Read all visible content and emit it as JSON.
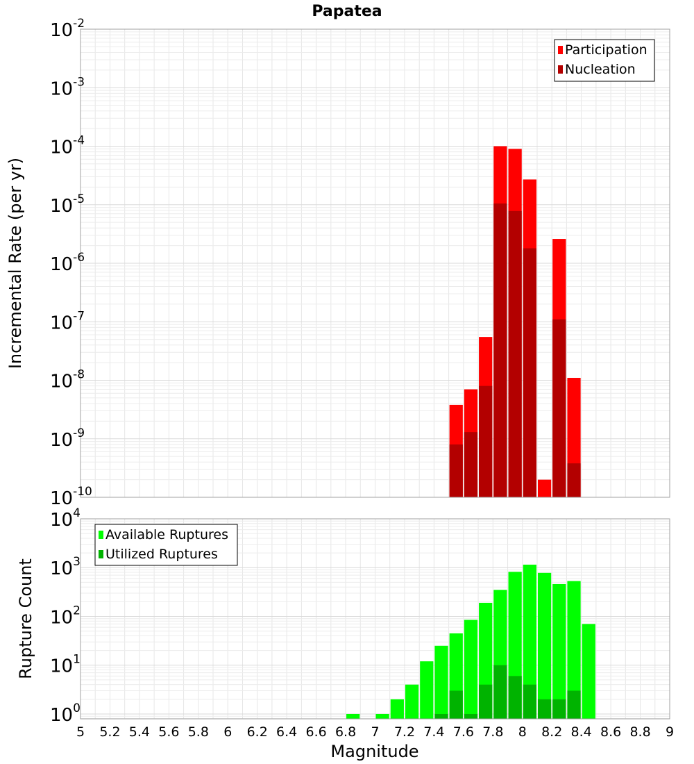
{
  "chart_data": {
    "title": "Papatea",
    "xlabel": "Magnitude",
    "xlim": [
      5,
      9
    ],
    "xticks": [
      "5",
      "5.2",
      "5.4",
      "5.6",
      "5.8",
      "6",
      "6.2",
      "6.4",
      "6.6",
      "6.8",
      "7",
      "7.2",
      "7.4",
      "7.6",
      "7.8",
      "8",
      "8.2",
      "8.4",
      "8.6",
      "8.8",
      "9"
    ],
    "bin_width": 0.1,
    "panels": [
      {
        "id": "rate",
        "type": "bar",
        "yscale": "log",
        "ylabel": "Incremental Rate (per yr)",
        "ylim_exp": [
          -10,
          -2
        ],
        "yticks": [
          {
            "base": "10",
            "exp": "-2"
          },
          {
            "base": "10",
            "exp": "-3"
          },
          {
            "base": "10",
            "exp": "-4"
          },
          {
            "base": "10",
            "exp": "-5"
          },
          {
            "base": "10",
            "exp": "-6"
          },
          {
            "base": "10",
            "exp": "-7"
          },
          {
            "base": "10",
            "exp": "-8"
          },
          {
            "base": "10",
            "exp": "-9"
          },
          {
            "base": "10",
            "exp": "-10"
          }
        ],
        "legend": [
          "Participation",
          "Nucleation"
        ],
        "series": [
          {
            "name": "Participation",
            "color": "#ff0000",
            "x": [
              7.55,
              7.65,
              7.75,
              7.85,
              7.95,
              8.05,
              8.15,
              8.25,
              8.35
            ],
            "values": [
              3.8e-09,
              7e-09,
              5.5e-08,
              0.0001,
              9e-05,
              2.7e-05,
              2e-10,
              2.6e-06,
              1.1e-08
            ]
          },
          {
            "name": "Nucleation",
            "color": "#b30000",
            "x": [
              7.55,
              7.65,
              7.75,
              7.85,
              7.95,
              8.05,
              8.25,
              8.35
            ],
            "values": [
              8e-10,
              1.3e-09,
              8e-09,
              1.05e-05,
              7.8e-06,
              1.8e-06,
              1.1e-07,
              3.8e-10
            ]
          }
        ]
      },
      {
        "id": "count",
        "type": "bar",
        "yscale": "log",
        "ylabel": "Rupture Count",
        "ylim_exp": [
          -0.1,
          4
        ],
        "yticks": [
          {
            "base": "10",
            "exp": "4"
          },
          {
            "base": "10",
            "exp": "3"
          },
          {
            "base": "10",
            "exp": "2"
          },
          {
            "base": "10",
            "exp": "1"
          },
          {
            "base": "10",
            "exp": "0"
          }
        ],
        "legend": [
          "Available Ruptures",
          "Utilized Ruptures"
        ],
        "series": [
          {
            "name": "Available Ruptures",
            "color": "#00ff00",
            "x": [
              6.85,
              7.05,
              7.15,
              7.25,
              7.35,
              7.45,
              7.55,
              7.65,
              7.75,
              7.85,
              7.95,
              8.05,
              8.15,
              8.25,
              8.35,
              8.45
            ],
            "values": [
              1,
              1,
              2,
              4,
              12,
              25,
              45,
              85,
              190,
              350,
              820,
              1150,
              780,
              460,
              530,
              70
            ]
          },
          {
            "name": "Utilized Ruptures",
            "color": "#00b300",
            "x": [
              7.45,
              7.55,
              7.65,
              7.75,
              7.85,
              7.95,
              8.05,
              8.15,
              8.25,
              8.35
            ],
            "values": [
              1,
              3,
              1,
              4,
              10,
              6,
              4,
              2,
              2,
              3
            ]
          }
        ]
      }
    ]
  }
}
